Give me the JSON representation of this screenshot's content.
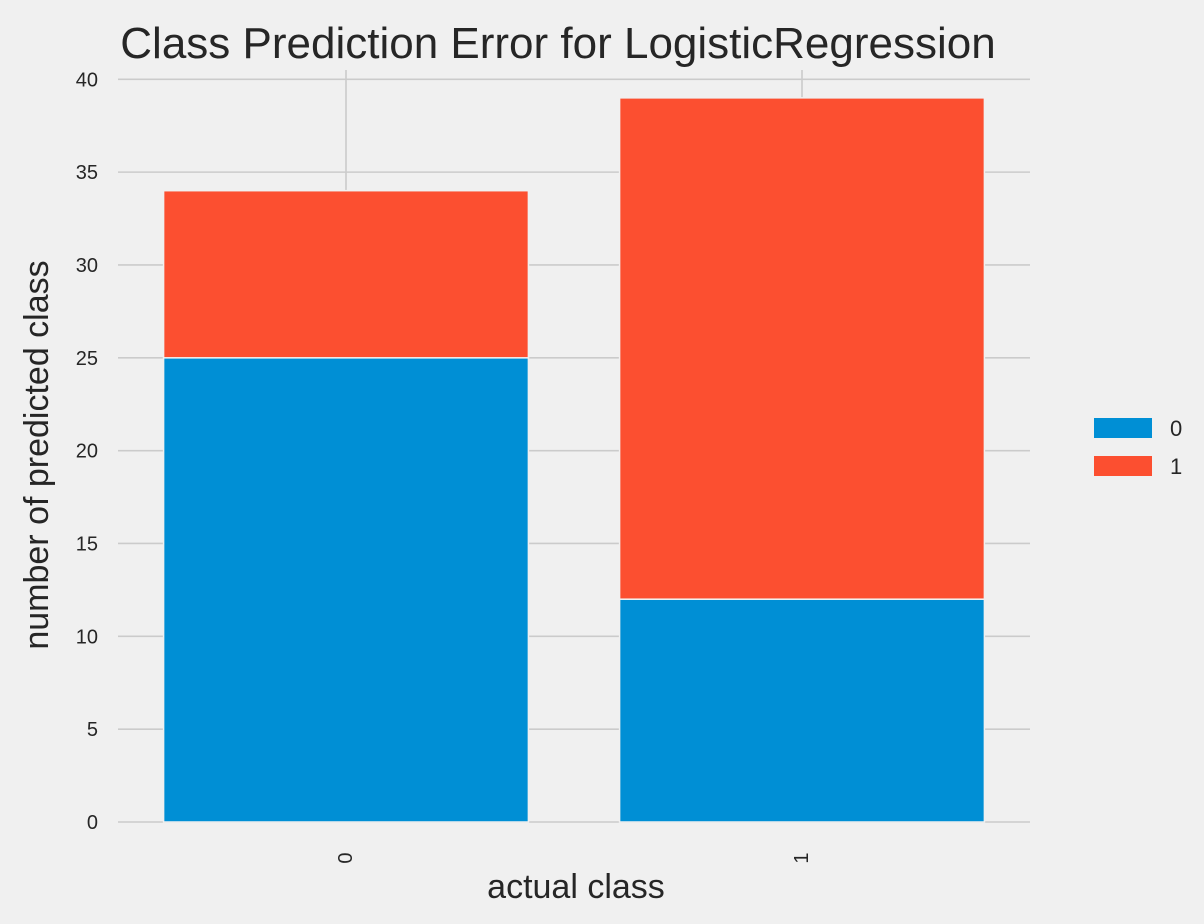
{
  "chart_data": {
    "type": "bar",
    "stacked": true,
    "title": "Class Prediction Error for LogisticRegression",
    "xlabel": "actual class",
    "ylabel": "number of predicted class",
    "categories": [
      "0",
      "1"
    ],
    "series": [
      {
        "name": "0",
        "values": [
          25,
          12
        ],
        "color": "#008fd5"
      },
      {
        "name": "1",
        "values": [
          9,
          27
        ],
        "color": "#fc4f30"
      }
    ],
    "ylim": [
      0,
      40.5
    ],
    "yticks": [
      0,
      5,
      10,
      15,
      20,
      25,
      30,
      35,
      40
    ],
    "grid": true,
    "legend_position": "right",
    "background_color": "#f0f0f0"
  }
}
